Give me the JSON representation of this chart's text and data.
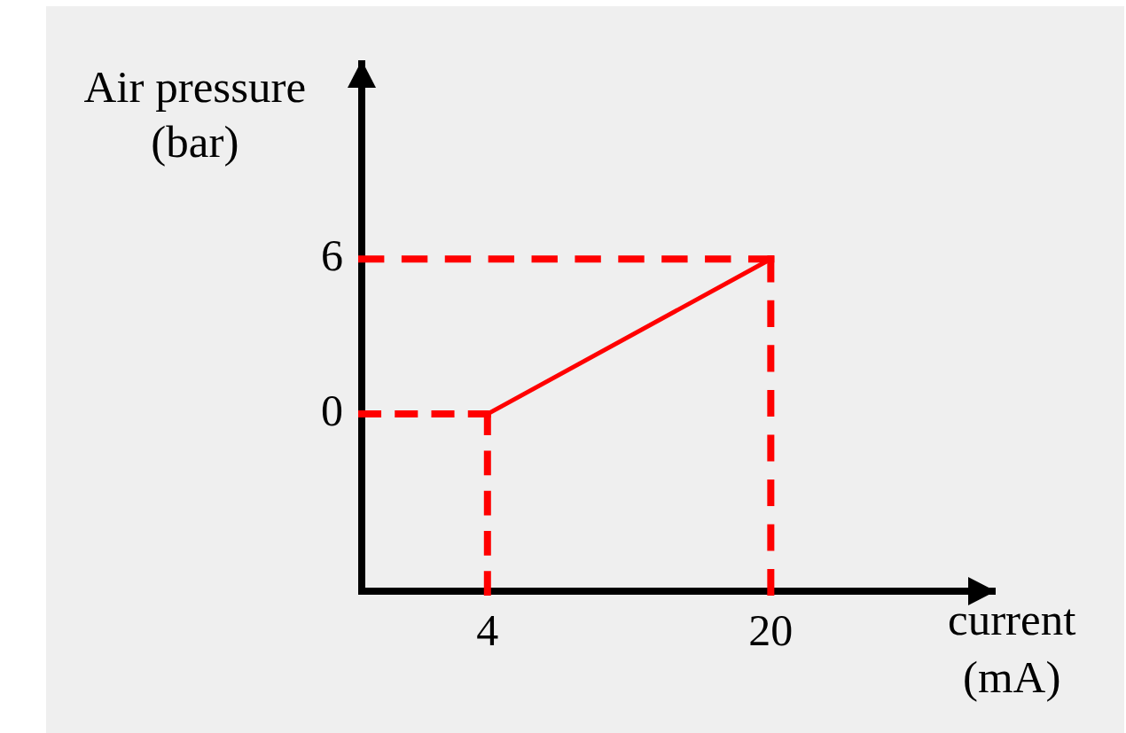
{
  "chart_data": {
    "type": "line",
    "xlabel": "current\n(mA)",
    "ylabel": "Air pressure\n(bar)",
    "xlim": [
      -3.3,
      32.7
    ],
    "ylim": [
      -7,
      13.7
    ],
    "xticks": [
      4,
      20
    ],
    "yticks": [
      0,
      6
    ],
    "marker": "none",
    "series": [
      {
        "x": [
          4,
          20
        ],
        "values": [
          0,
          6
        ],
        "color": "#ff0000",
        "line_style": "solid"
      },
      {
        "x": [
          -3.1,
          4
        ],
        "values": [
          0,
          0
        ],
        "color": "#ff0000",
        "line_style": "dashed"
      },
      {
        "x": [
          4,
          4
        ],
        "values": [
          0,
          -6.9
        ],
        "color": "#ff0000",
        "line_style": "dashed"
      },
      {
        "x": [
          -3.1,
          20
        ],
        "values": [
          6,
          6
        ],
        "color": "#ff0000",
        "line_style": "dashed"
      },
      {
        "x": [
          20,
          20
        ],
        "values": [
          6,
          -6.9
        ],
        "color": "#ff0000",
        "line_style": "dashed"
      }
    ]
  }
}
